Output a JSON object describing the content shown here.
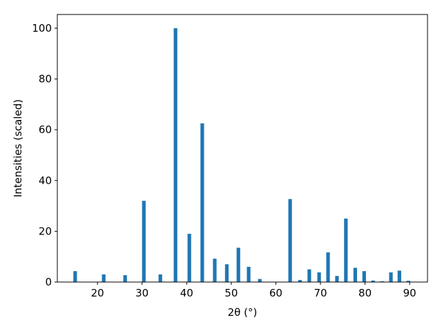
{
  "chart_data": {
    "type": "bar",
    "xlabel": "2θ (°)",
    "ylabel": "Intensities (scaled)",
    "x": [
      15.0,
      21.4,
      26.2,
      30.4,
      34.1,
      37.5,
      40.6,
      43.5,
      46.3,
      49.0,
      51.6,
      53.9,
      56.4,
      63.2,
      65.4,
      67.5,
      69.7,
      71.7,
      73.7,
      75.7,
      77.8,
      79.8,
      81.8,
      83.8,
      85.8,
      87.7,
      89.7
    ],
    "values": [
      4.3,
      3.0,
      2.7,
      32,
      3.0,
      100,
      19,
      62.5,
      9.2,
      7,
      13.5,
      6,
      1.2,
      32.7,
      0.8,
      5,
      3.8,
      11.7,
      2.4,
      25,
      5.6,
      4.3,
      0.6,
      0.3,
      3.8,
      4.5,
      0.5
    ],
    "color": "#1f77b4",
    "xlim": [
      11,
      94
    ],
    "ylim": [
      0,
      105.4
    ],
    "xticks": [
      20,
      30,
      40,
      50,
      60,
      70,
      80,
      90
    ],
    "yticks": [
      0,
      20,
      40,
      60,
      80,
      100
    ]
  }
}
